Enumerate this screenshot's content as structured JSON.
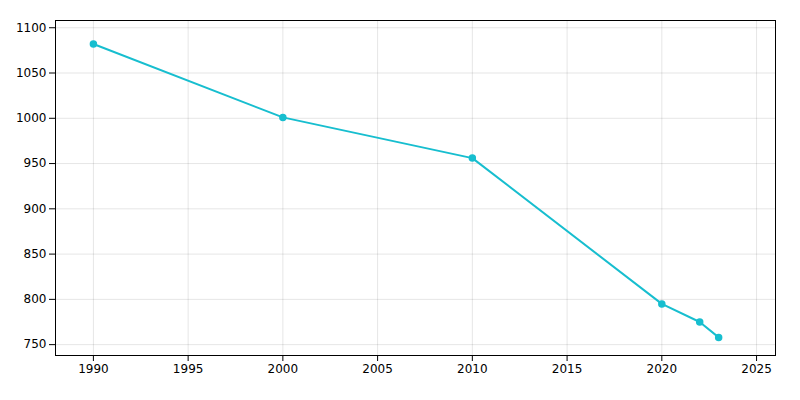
{
  "chart_data": {
    "type": "line",
    "x": [
      1990,
      2000,
      2010,
      2020,
      2022,
      2023
    ],
    "values": [
      1082,
      1001,
      956,
      795,
      775,
      758
    ],
    "color": "#17becf",
    "marker": "circle",
    "xlim": [
      1988,
      2026
    ],
    "ylim": [
      738,
      1108
    ],
    "xticks": [
      1990,
      1995,
      2000,
      2005,
      2010,
      2015,
      2020,
      2025
    ],
    "yticks": [
      750,
      800,
      850,
      900,
      950,
      1000,
      1050,
      1100
    ],
    "grid": true
  }
}
